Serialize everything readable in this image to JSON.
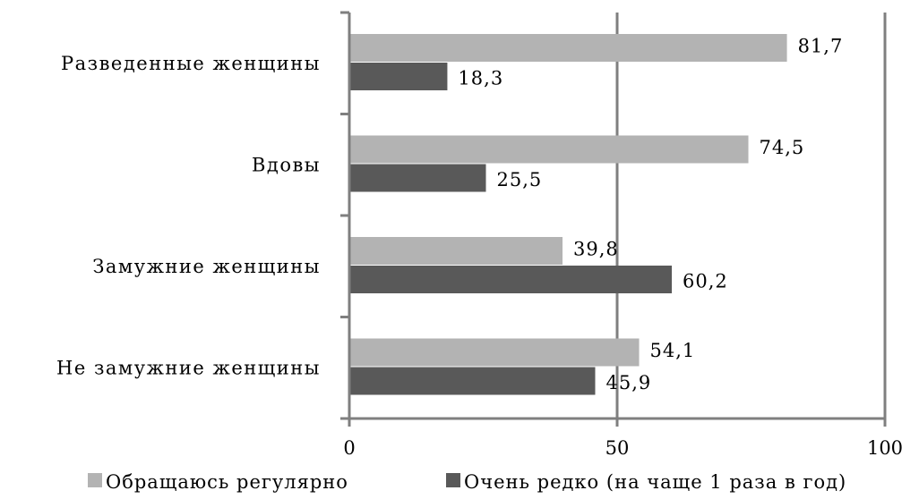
{
  "chart_data": {
    "type": "bar",
    "orientation": "horizontal",
    "categories": [
      "Разведенные женщины",
      "Вдовы",
      "Замужние женщины",
      "Не замужние женщины"
    ],
    "series": [
      {
        "name": "Обращаюсь регулярно",
        "values": [
          81.7,
          74.5,
          39.8,
          54.1
        ],
        "labels": [
          "81,7",
          "74,5",
          "39,8",
          "54,1"
        ],
        "color": "#b3b3b3"
      },
      {
        "name": "Очень редко (на чаще 1 раза в год)",
        "values": [
          18.3,
          25.5,
          60.2,
          45.9
        ],
        "labels": [
          "18,3",
          "25,5",
          "60,2",
          "45,9"
        ],
        "color": "#595959"
      }
    ],
    "xlim": [
      0,
      100
    ],
    "x_ticks": [
      0,
      50,
      100
    ],
    "x_tick_labels": [
      "0",
      "50",
      "100"
    ],
    "grid": "vertical",
    "legend_position": "bottom",
    "axis_color": "#7f7f7f"
  }
}
